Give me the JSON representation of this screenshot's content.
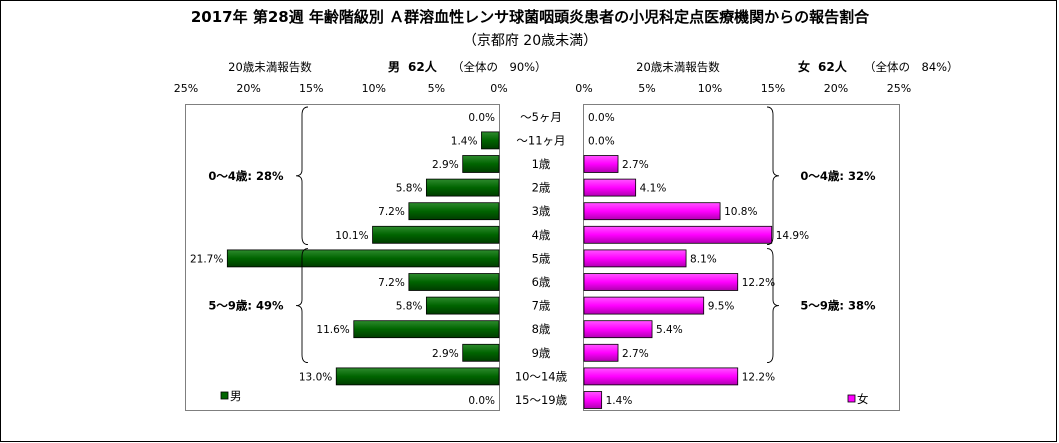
{
  "chart_data": {
    "type": "bar",
    "title": "2017年 第28週 年齢階級別 Ａ群溶血性レンサ球菌咽頭炎患者の小児科定点医療機関からの報告割合",
    "subtitle": "（京都府 20歳未満）",
    "categories": [
      "～5ヶ月",
      "～11ヶ月",
      "1歳",
      "2歳",
      "3歳",
      "4歳",
      "5歳",
      "6歳",
      "7歳",
      "8歳",
      "9歳",
      "10～14歳",
      "15～19歳"
    ],
    "male": {
      "count_label": "20歳未満報告数",
      "summary_name": "男",
      "summary_count": "62人",
      "summary_share": "（全体の　90%）",
      "legend": "男",
      "color": "#006400",
      "values": [
        0.0,
        1.4,
        2.9,
        5.8,
        7.2,
        10.1,
        21.7,
        7.2,
        5.8,
        11.6,
        2.9,
        13.0,
        0.0
      ],
      "value_labels": [
        "0.0%",
        "1.4%",
        "2.9%",
        "5.8%",
        "7.2%",
        "10.1%",
        "21.7%",
        "7.2%",
        "5.8%",
        "11.6%",
        "2.9%",
        "13.0%",
        "0.0%"
      ],
      "axis_ticks": [
        "25%",
        "20%",
        "15%",
        "10%",
        "5%",
        "0%"
      ],
      "xlim": [
        0,
        25
      ],
      "groups": [
        {
          "label": "0～4歳: 28%",
          "from": 0,
          "to": 5
        },
        {
          "label": "5～9歳: 49%",
          "from": 6,
          "to": 10
        }
      ]
    },
    "female": {
      "count_label": "20歳未満報告数",
      "summary_name": "女",
      "summary_count": "62人",
      "summary_share": "（全体の　84%）",
      "legend": "女",
      "color": "#ff00ff",
      "values": [
        0.0,
        0.0,
        2.7,
        4.1,
        10.8,
        14.9,
        8.1,
        12.2,
        9.5,
        5.4,
        2.7,
        12.2,
        1.4
      ],
      "value_labels": [
        "0.0%",
        "0.0%",
        "2.7%",
        "4.1%",
        "10.8%",
        "14.9%",
        "8.1%",
        "12.2%",
        "9.5%",
        "5.4%",
        "2.7%",
        "12.2%",
        "1.4%"
      ],
      "axis_ticks": [
        "0%",
        "5%",
        "10%",
        "15%",
        "20%",
        "25%"
      ],
      "xlim": [
        0,
        25
      ],
      "groups": [
        {
          "label": "0～4歳: 32%",
          "from": 0,
          "to": 5
        },
        {
          "label": "5～9歳: 38%",
          "from": 6,
          "to": 10
        }
      ]
    },
    "grid": false
  }
}
